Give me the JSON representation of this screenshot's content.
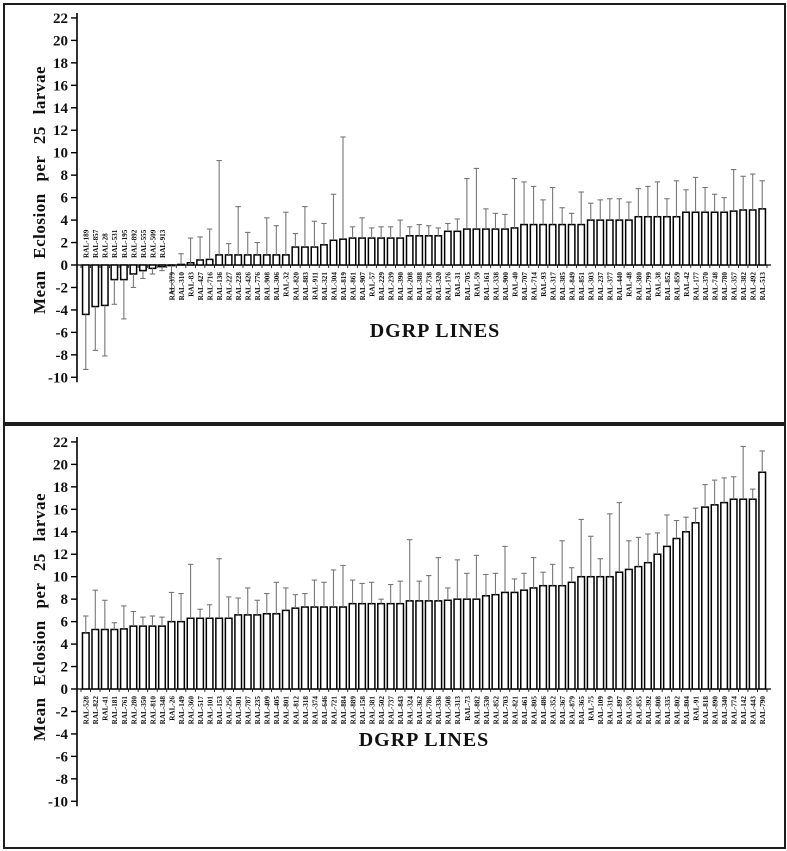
{
  "figure": {
    "description": "Two stacked bar charts of mean eclosion per 25 larvae across DGRP lines with one-sided error bars"
  },
  "chart_data": [
    {
      "type": "bar",
      "panel": "top",
      "title": "",
      "ylabel": "Mean Eclosion per 25 larvae",
      "xlabel": "DGRP LINES",
      "ylim": [
        -10,
        22
      ],
      "yticks": [
        22,
        20,
        18,
        16,
        14,
        12,
        10,
        8,
        6,
        4,
        2,
        0,
        -2,
        -4,
        -6,
        -8,
        -10
      ],
      "grid": false,
      "legend": "none",
      "bar_fill": "#ffffff",
      "bar_stroke": "#000000",
      "error_color": "#777777",
      "categories": [
        "RAL-189",
        "RAL-857",
        "RAL-28",
        "RAL-531",
        "RAL-195",
        "RAL-892",
        "RAL-555",
        "RAL-509",
        "RAL-913",
        "RAL-379",
        "RAL-310",
        "RAL-83",
        "RAL-427",
        "RAL-716",
        "RAL-136",
        "RAL-227",
        "RAL-228",
        "RAL-426",
        "RAL-776",
        "RAL-908",
        "RAL-306",
        "RAL-32",
        "RAL-820",
        "RAL-883",
        "RAL-911",
        "RAL-321",
        "RAL-304",
        "RAL-819",
        "RAL-861",
        "RAL-907",
        "RAL-57",
        "RAL-229",
        "RAL-239",
        "RAL-390",
        "RAL-208",
        "RAL-388",
        "RAL-738",
        "RAL-320",
        "RAL-176",
        "RAL-31",
        "RAL-705",
        "RAL-59",
        "RAL-161",
        "RAL-338",
        "RAL-900",
        "RAL-40",
        "RAL-707",
        "RAL-714",
        "RAL-93",
        "RAL-317",
        "RAL-385",
        "RAL-849",
        "RAL-851",
        "RAL-303",
        "RAL-237",
        "RAL-377",
        "RAL-440",
        "RAL-48",
        "RAL-380",
        "RAL-799",
        "RAL-38",
        "RAL-852",
        "RAL-859",
        "RAL-42",
        "RAL-177",
        "RAL-370",
        "RAL-748",
        "RAL-780",
        "RAL-357",
        "RAL-382",
        "RAL-492",
        "RAL-513"
      ],
      "values": [
        -4.4,
        -3.7,
        -3.6,
        -1.3,
        -1.3,
        -0.8,
        -0.5,
        -0.3,
        -0.15,
        -0.05,
        0.05,
        0.2,
        0.45,
        0.5,
        0.9,
        0.9,
        0.9,
        0.9,
        0.9,
        0.9,
        0.9,
        0.9,
        1.6,
        1.6,
        1.6,
        1.8,
        2.2,
        2.3,
        2.4,
        2.4,
        2.4,
        2.4,
        2.4,
        2.4,
        2.6,
        2.6,
        2.6,
        2.6,
        3.0,
        3.0,
        3.2,
        3.2,
        3.2,
        3.2,
        3.2,
        3.3,
        3.6,
        3.6,
        3.6,
        3.6,
        3.6,
        3.6,
        3.6,
        4.0,
        4.0,
        4.0,
        4.0,
        4.0,
        4.3,
        4.3,
        4.3,
        4.3,
        4.3,
        4.7,
        4.7,
        4.7,
        4.7,
        4.7,
        4.8,
        4.9,
        4.9,
        5.0
      ],
      "error_tips": [
        -9.3,
        -7.6,
        -8.1,
        -3.5,
        -4.8,
        -2.0,
        -1.2,
        -0.8,
        -0.5,
        -2.5,
        1.0,
        2.4,
        2.5,
        3.2,
        9.3,
        1.9,
        5.2,
        2.9,
        2.0,
        4.2,
        3.5,
        4.7,
        2.8,
        5.2,
        3.9,
        3.7,
        6.3,
        11.4,
        3.4,
        4.2,
        3.3,
        3.4,
        3.4,
        4.0,
        3.4,
        3.6,
        3.5,
        3.3,
        3.7,
        4.1,
        7.7,
        8.6,
        5.0,
        4.6,
        4.5,
        7.7,
        7.4,
        7.0,
        5.8,
        6.9,
        5.1,
        4.6,
        6.5,
        5.5,
        5.8,
        5.9,
        5.9,
        5.6,
        6.8,
        7.0,
        7.4,
        5.9,
        7.5,
        6.7,
        7.8,
        6.9,
        6.3,
        6.0,
        8.5,
        7.9,
        8.1,
        7.5
      ]
    },
    {
      "type": "bar",
      "panel": "bottom",
      "title": "",
      "ylabel": "Mean Eclosion per 25 larvae",
      "xlabel": "DGRP LINES",
      "ylim": [
        -10,
        22
      ],
      "yticks": [
        22,
        20,
        18,
        16,
        14,
        12,
        10,
        8,
        6,
        4,
        2,
        0,
        -2,
        -4,
        -6,
        -8,
        -10
      ],
      "grid": false,
      "legend": "none",
      "bar_fill": "#ffffff",
      "bar_stroke": "#000000",
      "error_color": "#777777",
      "categories": [
        "RAL-528",
        "RAL-822",
        "RAL-41",
        "RAL-181",
        "RAL-761",
        "RAL-280",
        "RAL-350",
        "RAL-810",
        "RAL-348",
        "RAL-26",
        "RAL-149",
        "RAL-360",
        "RAL-517",
        "RAL-101",
        "RAL-153",
        "RAL-256",
        "RAL-301",
        "RAL-787",
        "RAL-235",
        "RAL-409",
        "RAL-405",
        "RAL-801",
        "RAL-812",
        "RAL-318",
        "RAL-374",
        "RAL-646",
        "RAL-721",
        "RAL-884",
        "RAL-889",
        "RAL-158",
        "RAL-381",
        "RAL-502",
        "RAL-737",
        "RAL-843",
        "RAL-324",
        "RAL-362",
        "RAL-786",
        "RAL-336",
        "RAL-508",
        "RAL-313",
        "RAL-73",
        "RAL-882",
        "RAL-530",
        "RAL-852",
        "RAL-703",
        "RAL-821",
        "RAL-461",
        "RAL-805",
        "RAL-486",
        "RAL-352",
        "RAL-367",
        "RAL-879",
        "RAL-365",
        "RAL-75",
        "RAL-109",
        "RAL-319",
        "RAL-897",
        "RAL-359",
        "RAL-855",
        "RAL-392",
        "RAL-808",
        "RAL-335",
        "RAL-802",
        "RAL-804",
        "RAL-91",
        "RAL-818",
        "RAL-890",
        "RAL-340",
        "RAL-774",
        "RAL-142",
        "RAL-443",
        "RAL-790"
      ],
      "values": [
        5.0,
        5.3,
        5.3,
        5.3,
        5.35,
        5.6,
        5.6,
        5.6,
        5.6,
        6.0,
        6.0,
        6.3,
        6.3,
        6.3,
        6.3,
        6.3,
        6.6,
        6.6,
        6.6,
        6.7,
        6.7,
        7.0,
        7.2,
        7.3,
        7.3,
        7.3,
        7.3,
        7.3,
        7.6,
        7.6,
        7.6,
        7.6,
        7.6,
        7.6,
        7.85,
        7.85,
        7.85,
        7.85,
        7.9,
        8.0,
        8.0,
        8.0,
        8.3,
        8.4,
        8.6,
        8.6,
        8.8,
        9.0,
        9.2,
        9.2,
        9.2,
        9.5,
        10.0,
        10.0,
        10.0,
        10.0,
        10.4,
        10.65,
        10.9,
        11.25,
        12.0,
        12.7,
        13.4,
        14.0,
        14.8,
        16.2,
        16.4,
        16.6,
        16.9,
        16.9,
        16.9,
        19.3
      ],
      "error_tips": [
        6.5,
        8.8,
        7.9,
        5.9,
        7.4,
        6.9,
        6.4,
        6.5,
        6.4,
        8.6,
        8.5,
        11.1,
        7.1,
        7.5,
        11.6,
        8.2,
        8.1,
        9.0,
        7.9,
        8.5,
        9.5,
        9.0,
        8.4,
        8.5,
        9.7,
        9.5,
        10.6,
        11.0,
        9.7,
        9.4,
        9.5,
        8.0,
        9.3,
        9.6,
        13.3,
        9.6,
        10.1,
        11.7,
        9.0,
        11.5,
        10.3,
        11.9,
        10.2,
        10.3,
        12.7,
        9.8,
        10.3,
        11.7,
        10.4,
        11.1,
        13.2,
        10.8,
        15.1,
        13.6,
        11.6,
        15.6,
        16.6,
        13.2,
        13.5,
        13.8,
        13.9,
        15.5,
        15.0,
        15.3,
        16.1,
        18.2,
        18.6,
        18.8,
        18.9,
        21.6,
        17.8,
        21.2
      ]
    }
  ]
}
